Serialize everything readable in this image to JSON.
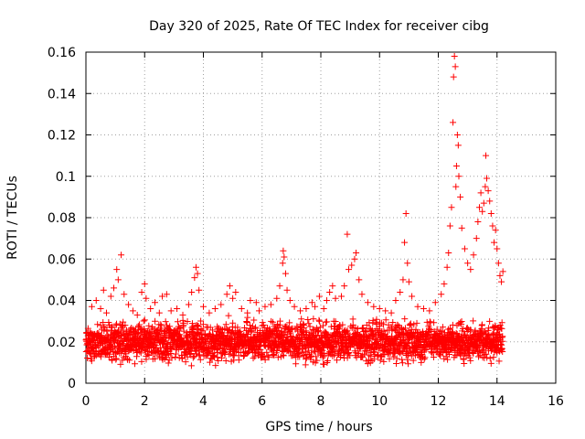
{
  "chart_data": {
    "type": "scatter",
    "title": "Day 320 of 2025, Rate Of TEC Index for receiver cibg",
    "xlabel": "GPS time / hours",
    "ylabel": "ROTI / TECUs",
    "xlim": [
      0,
      16
    ],
    "ylim": [
      0,
      0.16
    ],
    "grid": true,
    "x_ticks": [
      0,
      2,
      4,
      6,
      8,
      10,
      12,
      14,
      16
    ],
    "y_ticks": [
      0,
      0.02,
      0.04,
      0.06,
      0.08,
      0.1,
      0.12,
      0.14,
      0.16
    ],
    "x_tick_labels": [
      "0",
      "2",
      "4",
      "6",
      "8",
      "10",
      "12",
      "14",
      "16"
    ],
    "y_tick_labels": [
      "0",
      "0.02",
      "0.04",
      "0.06",
      "0.08",
      "0.1",
      "0.12",
      "0.14",
      "0.16"
    ],
    "marker": "+",
    "marker_color": "#ff0000",
    "baseline_band": {
      "x_range": [
        0,
        14.2
      ],
      "y_range": [
        0.007,
        0.033
      ],
      "typical": 0.019
    },
    "series": [
      {
        "name": "ROTI",
        "points": [
          [
            0.2,
            0.037
          ],
          [
            0.35,
            0.04
          ],
          [
            0.5,
            0.036
          ],
          [
            0.6,
            0.045
          ],
          [
            0.7,
            0.034
          ],
          [
            0.85,
            0.042
          ],
          [
            0.95,
            0.046
          ],
          [
            1.05,
            0.055
          ],
          [
            1.1,
            0.05
          ],
          [
            1.2,
            0.062
          ],
          [
            1.3,
            0.043
          ],
          [
            1.45,
            0.038
          ],
          [
            1.6,
            0.035
          ],
          [
            1.75,
            0.033
          ],
          [
            1.9,
            0.044
          ],
          [
            2.0,
            0.048
          ],
          [
            2.05,
            0.041
          ],
          [
            2.2,
            0.036
          ],
          [
            2.35,
            0.039
          ],
          [
            2.5,
            0.034
          ],
          [
            2.6,
            0.042
          ],
          [
            2.75,
            0.043
          ],
          [
            2.9,
            0.035
          ],
          [
            3.1,
            0.036
          ],
          [
            3.3,
            0.033
          ],
          [
            3.5,
            0.038
          ],
          [
            3.6,
            0.044
          ],
          [
            3.7,
            0.051
          ],
          [
            3.75,
            0.056
          ],
          [
            3.8,
            0.053
          ],
          [
            3.85,
            0.045
          ],
          [
            4.0,
            0.037
          ],
          [
            4.2,
            0.034
          ],
          [
            4.4,
            0.036
          ],
          [
            4.6,
            0.038
          ],
          [
            4.8,
            0.043
          ],
          [
            4.9,
            0.047
          ],
          [
            5.0,
            0.041
          ],
          [
            5.1,
            0.044
          ],
          [
            5.3,
            0.036
          ],
          [
            5.5,
            0.034
          ],
          [
            5.6,
            0.04
          ],
          [
            5.8,
            0.039
          ],
          [
            5.9,
            0.035
          ],
          [
            6.1,
            0.037
          ],
          [
            6.3,
            0.038
          ],
          [
            6.5,
            0.041
          ],
          [
            6.6,
            0.047
          ],
          [
            6.7,
            0.058
          ],
          [
            6.72,
            0.064
          ],
          [
            6.75,
            0.061
          ],
          [
            6.8,
            0.053
          ],
          [
            6.85,
            0.045
          ],
          [
            6.95,
            0.04
          ],
          [
            7.1,
            0.037
          ],
          [
            7.3,
            0.035
          ],
          [
            7.5,
            0.036
          ],
          [
            7.7,
            0.039
          ],
          [
            7.8,
            0.037
          ],
          [
            7.95,
            0.042
          ],
          [
            8.1,
            0.036
          ],
          [
            8.2,
            0.04
          ],
          [
            8.3,
            0.044
          ],
          [
            8.4,
            0.047
          ],
          [
            8.5,
            0.041
          ],
          [
            8.7,
            0.042
          ],
          [
            8.8,
            0.047
          ],
          [
            8.9,
            0.072
          ],
          [
            8.95,
            0.055
          ],
          [
            9.05,
            0.057
          ],
          [
            9.15,
            0.06
          ],
          [
            9.2,
            0.063
          ],
          [
            9.3,
            0.05
          ],
          [
            9.4,
            0.043
          ],
          [
            9.6,
            0.039
          ],
          [
            9.8,
            0.037
          ],
          [
            10.0,
            0.036
          ],
          [
            10.2,
            0.035
          ],
          [
            10.4,
            0.034
          ],
          [
            10.55,
            0.04
          ],
          [
            10.7,
            0.044
          ],
          [
            10.8,
            0.05
          ],
          [
            10.85,
            0.068
          ],
          [
            10.9,
            0.082
          ],
          [
            10.95,
            0.058
          ],
          [
            11.0,
            0.049
          ],
          [
            11.1,
            0.042
          ],
          [
            11.3,
            0.037
          ],
          [
            11.5,
            0.036
          ],
          [
            11.7,
            0.035
          ],
          [
            11.9,
            0.039
          ],
          [
            12.1,
            0.043
          ],
          [
            12.2,
            0.048
          ],
          [
            12.3,
            0.056
          ],
          [
            12.35,
            0.063
          ],
          [
            12.4,
            0.076
          ],
          [
            12.45,
            0.085
          ],
          [
            12.5,
            0.126
          ],
          [
            12.52,
            0.148
          ],
          [
            12.55,
            0.158
          ],
          [
            12.58,
            0.153
          ],
          [
            12.6,
            0.095
          ],
          [
            12.62,
            0.105
          ],
          [
            12.65,
            0.12
          ],
          [
            12.68,
            0.115
          ],
          [
            12.7,
            0.1
          ],
          [
            12.75,
            0.09
          ],
          [
            12.8,
            0.075
          ],
          [
            12.9,
            0.065
          ],
          [
            13.0,
            0.058
          ],
          [
            13.1,
            0.055
          ],
          [
            13.2,
            0.062
          ],
          [
            13.3,
            0.07
          ],
          [
            13.35,
            0.078
          ],
          [
            13.4,
            0.085
          ],
          [
            13.45,
            0.092
          ],
          [
            13.5,
            0.083
          ],
          [
            13.55,
            0.087
          ],
          [
            13.6,
            0.095
          ],
          [
            13.62,
            0.11
          ],
          [
            13.65,
            0.099
          ],
          [
            13.7,
            0.093
          ],
          [
            13.75,
            0.088
          ],
          [
            13.8,
            0.082
          ],
          [
            13.85,
            0.076
          ],
          [
            13.9,
            0.068
          ],
          [
            13.95,
            0.074
          ],
          [
            14.0,
            0.065
          ],
          [
            14.05,
            0.058
          ],
          [
            14.1,
            0.052
          ],
          [
            14.15,
            0.049
          ],
          [
            14.2,
            0.054
          ]
        ]
      }
    ]
  }
}
